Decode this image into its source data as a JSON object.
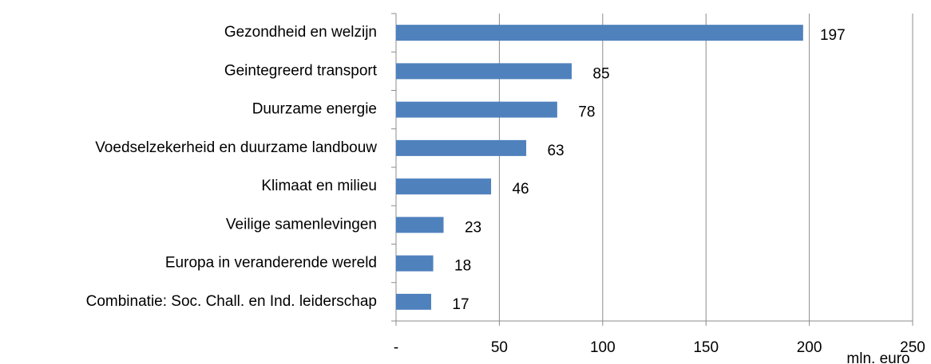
{
  "chart_data": {
    "type": "barh",
    "categories": [
      "Gezondheid en welzijn",
      "Geintegreerd transport",
      "Duurzame energie",
      "Voedselzekerheid en duurzame landbouw",
      "Klimaat en milieu",
      "Veilige samenlevingen",
      "Europa in veranderende wereld",
      "Combinatie: Soc. Chall. en Ind. leiderschap"
    ],
    "values": [
      197,
      85,
      78,
      63,
      46,
      23,
      18,
      17
    ],
    "color": "#4f81bd",
    "xlabel": "mln. euro",
    "xlim": [
      0,
      250
    ],
    "xticks": [
      {
        "value": 0,
        "label": "-"
      },
      50,
      100,
      150,
      200,
      250
    ],
    "grid": true
  }
}
